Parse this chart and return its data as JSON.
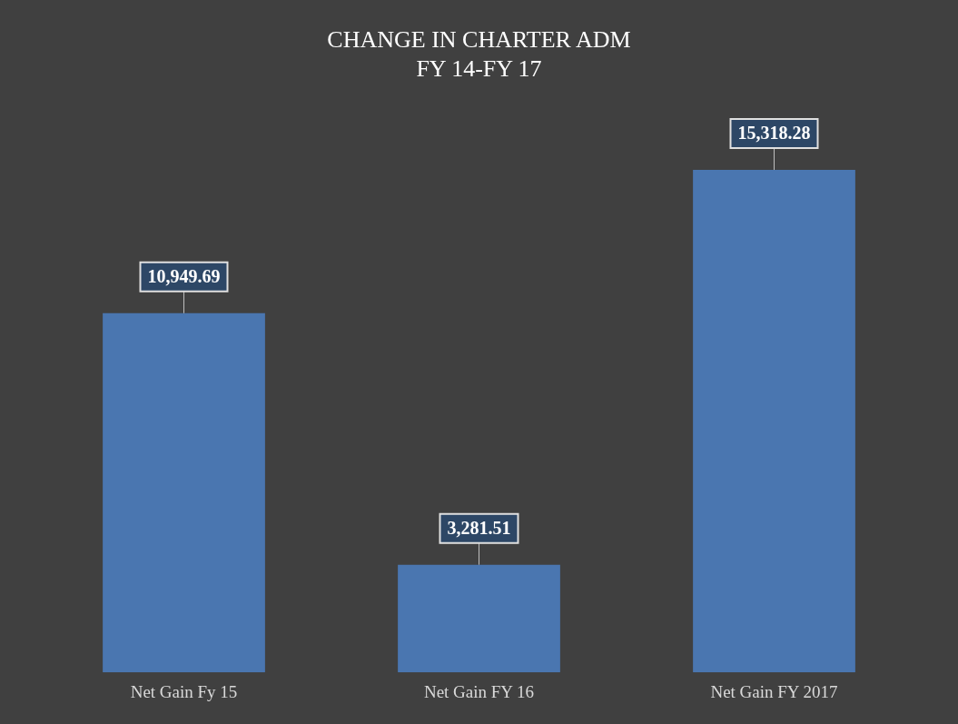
{
  "chart_data": {
    "type": "bar",
    "title": "CHANGE IN CHARTER ADM\nFY 14-FY 17",
    "categories": [
      "Net Gain Fy 15",
      "Net Gain FY 16",
      "Net Gain FY 2017"
    ],
    "values": [
      10949.69,
      3281.51,
      15318.28
    ],
    "value_labels": [
      "10,949.69",
      "3,281.51",
      "15,318.28"
    ],
    "color": "#4a76b0",
    "grid": false,
    "legend": false
  }
}
